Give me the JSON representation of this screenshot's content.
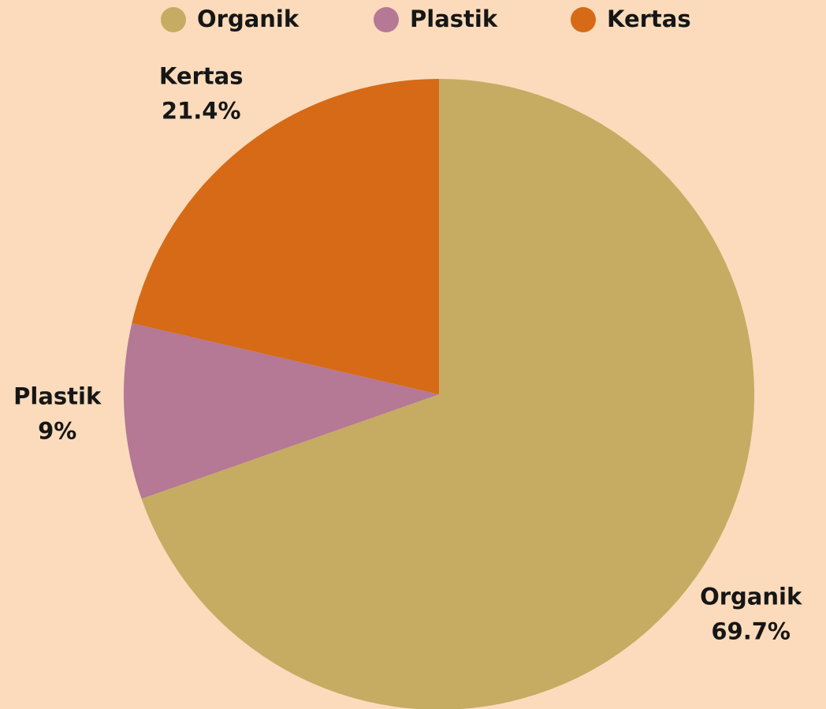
{
  "chart_data": {
    "type": "pie",
    "categories": [
      "Organik",
      "Plastik",
      "Kertas"
    ],
    "values": [
      69.7,
      9,
      21.4
    ],
    "value_labels": [
      "69.7%",
      "9%",
      "21.4%"
    ],
    "colors": [
      "#c6ab62",
      "#b57895",
      "#d66a17"
    ],
    "legend": "top"
  }
}
